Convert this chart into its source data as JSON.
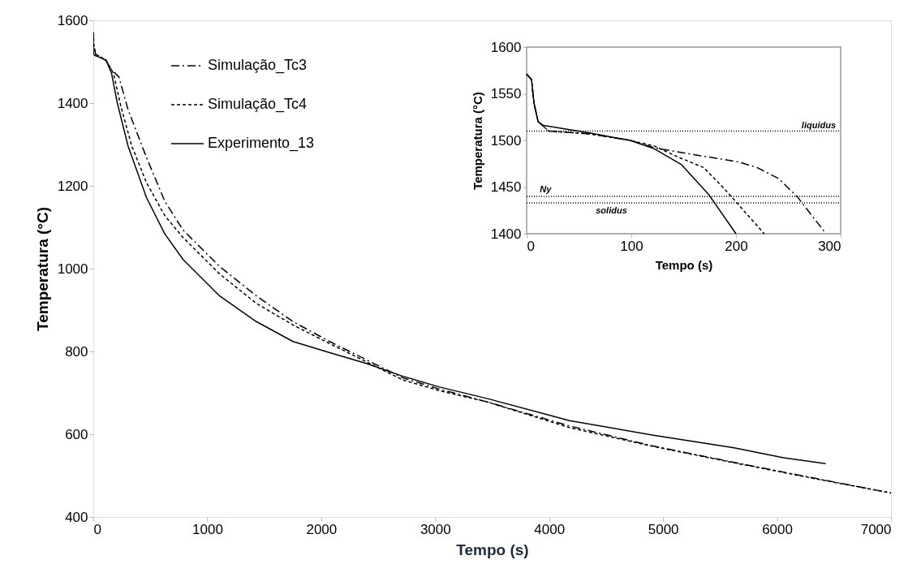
{
  "chart_data": [
    {
      "type": "line",
      "xlabel": "Tempo (s)",
      "ylabel": "Temperatura (°C)",
      "xlim": [
        0,
        7000
      ],
      "ylim": [
        400,
        1600
      ],
      "xticks": [
        0,
        1000,
        2000,
        3000,
        4000,
        5000,
        6000,
        7000
      ],
      "yticks": [
        400,
        600,
        800,
        1000,
        1200,
        1400,
        1600
      ],
      "grid": false,
      "legend": "top left",
      "series": [
        {
          "name": "Simulação_Tc3",
          "color": "#000000",
          "line_style": "dashdot",
          "x": [
            0,
            5,
            20,
            60,
            113,
            145,
            225,
            305,
            466,
            627,
            788,
            1109,
            1431,
            1752,
            2074,
            2395,
            2556,
            2717,
            3039,
            3457,
            4178,
            4904,
            5623,
            6343,
            7000
          ],
          "values": [
            1571,
            1540,
            1518,
            1512,
            1503,
            1485,
            1463,
            1384,
            1269,
            1163,
            1093,
            1005,
            934,
            872,
            824,
            780,
            758,
            736,
            709,
            678,
            620,
            572,
            532,
            493,
            458
          ]
        },
        {
          "name": "Simulação_Tc4",
          "color": "#000000",
          "line_style": "dashed",
          "x": [
            0,
            5,
            20,
            60,
            113,
            177,
            241,
            338,
            466,
            627,
            788,
            1109,
            1431,
            1752,
            2074,
            2395,
            2717,
            3039,
            3457,
            4178,
            4904,
            5623,
            6343,
            7000
          ],
          "values": [
            1571,
            1540,
            1518,
            1512,
            1503,
            1472,
            1393,
            1296,
            1208,
            1128,
            1075,
            987,
            916,
            864,
            819,
            775,
            731,
            705,
            678,
            616,
            571,
            531,
            492,
            458
          ]
        },
        {
          "name": "Experimento_13",
          "color": "#000000",
          "line_style": "solid",
          "x": [
            0,
            1,
            20,
            60,
            113,
            160,
            209,
            305,
            466,
            627,
            788,
            1109,
            1431,
            1752,
            2074,
            2395,
            2717,
            3039,
            3459,
            4178,
            4904,
            5623,
            6057,
            6427
          ],
          "values": [
            1571,
            1518,
            1514,
            1510,
            1503,
            1472,
            1402,
            1296,
            1172,
            1084,
            1022,
            934,
            872,
            824,
            797,
            771,
            740,
            714,
            686,
            633,
            598,
            567,
            543,
            529
          ]
        }
      ]
    },
    {
      "type": "line",
      "xlabel": "Tempo (s)",
      "ylabel": "Temperatura (°C)",
      "xlim": [
        0,
        300
      ],
      "ylim": [
        1400,
        1600
      ],
      "xticks": [
        0,
        100,
        200,
        300
      ],
      "yticks": [
        1400,
        1450,
        1500,
        1550,
        1600
      ],
      "grid": false,
      "legend": false,
      "ref_lines": [
        {
          "axis": "y",
          "value": 1510,
          "label": "liquidus",
          "color": "#000000",
          "line_style": "dotted"
        },
        {
          "axis": "y",
          "value": 1440,
          "label": "Ny",
          "color": "#000000",
          "line_style": "dotted"
        },
        {
          "axis": "y",
          "value": 1433,
          "label": "solidus",
          "color": "#000000",
          "line_style": "dotted"
        }
      ],
      "series": [
        {
          "color": "#000000",
          "line_style": "dashdot",
          "x": [
            0,
            4.7,
            7,
            11,
            21,
            60,
            99,
            122,
            164,
            202,
            220,
            241,
            259,
            286
          ],
          "values": [
            1571,
            1565,
            1540,
            1520,
            1510,
            1507,
            1500,
            1492,
            1484,
            1477,
            1471,
            1459,
            1439,
            1400
          ]
        },
        {
          "color": "#000000",
          "line_style": "dashed",
          "x": [
            0,
            4.7,
            7,
            11,
            21,
            60,
            99,
            122,
            145,
            169,
            189,
            227
          ],
          "values": [
            1571,
            1565,
            1540,
            1520,
            1510,
            1507,
            1500,
            1494,
            1482,
            1471,
            1448,
            1400
          ]
        },
        {
          "color": "#000000",
          "line_style": "solid",
          "x": [
            0,
            4.7,
            7,
            11,
            16,
            60,
            99,
            122,
            148,
            174,
            200
          ],
          "values": [
            1571,
            1565,
            1540,
            1520,
            1516,
            1508,
            1500,
            1491,
            1474,
            1442,
            1400
          ]
        }
      ]
    }
  ]
}
